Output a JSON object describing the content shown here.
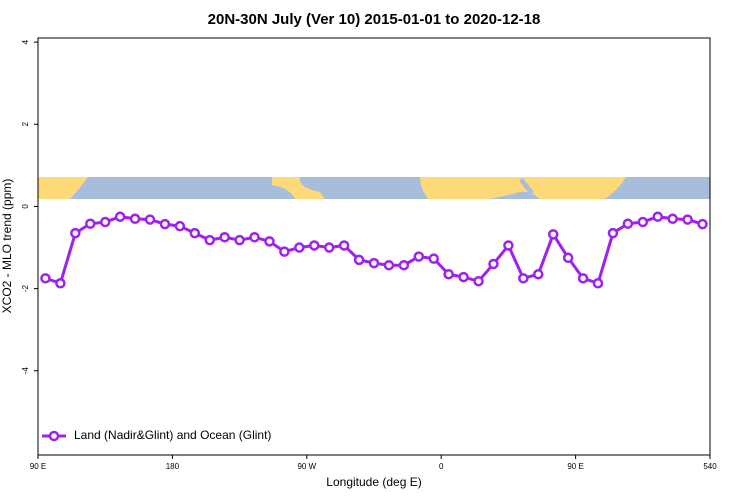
{
  "chart_data": {
    "type": "line",
    "title": "20N-30N July (Ver 10)   2015-01-01 to 2020-12-18",
    "x_label": "Longitude (deg E)",
    "y_label": "XCO2 - MLO trend (ppm)",
    "x": [
      95,
      105,
      115,
      125,
      135,
      145,
      155,
      165,
      175,
      185,
      195,
      205,
      215,
      225,
      235,
      245,
      255,
      265,
      275,
      285,
      295,
      305,
      315,
      325,
      335,
      345,
      355,
      365,
      375,
      385,
      395,
      405,
      415,
      425,
      435,
      445,
      455,
      465,
      475,
      485,
      495,
      505,
      515,
      525,
      535
    ],
    "series": [
      {
        "name": "Land (Nadir&Glint) and Ocean (Glint)",
        "color": "#a020f0",
        "values": [
          -1.75,
          -1.87,
          -0.65,
          -0.42,
          -0.38,
          -0.25,
          -0.3,
          -0.32,
          -0.43,
          -0.48,
          -0.65,
          -0.82,
          -0.75,
          -0.82,
          -0.75,
          -0.85,
          -1.1,
          -1.0,
          -0.95,
          -1.0,
          -0.95,
          -1.3,
          -1.38,
          -1.43,
          -1.43,
          -1.22,
          -1.27,
          -1.65,
          -1.72,
          -1.82,
          -1.4,
          -0.95,
          -1.75,
          -1.65,
          -0.68,
          -1.25,
          -1.75,
          -1.87,
          -0.65,
          -0.42,
          -0.38,
          -0.25,
          -0.3,
          -0.32,
          -0.43
        ]
      }
    ],
    "xlim": [
      90,
      540
    ],
    "xticks": [
      {
        "value": 90,
        "label": "90 E"
      },
      180,
      {
        "value": 270,
        "label": "90 W"
      },
      {
        "value": 360,
        "label": "0"
      },
      {
        "value": 450,
        "label": "90 E"
      },
      540
    ],
    "ylim": [
      -6.05,
      4.1
    ],
    "yticks": [
      4,
      2,
      0,
      -2,
      -4
    ],
    "legend": "bottom-left"
  }
}
